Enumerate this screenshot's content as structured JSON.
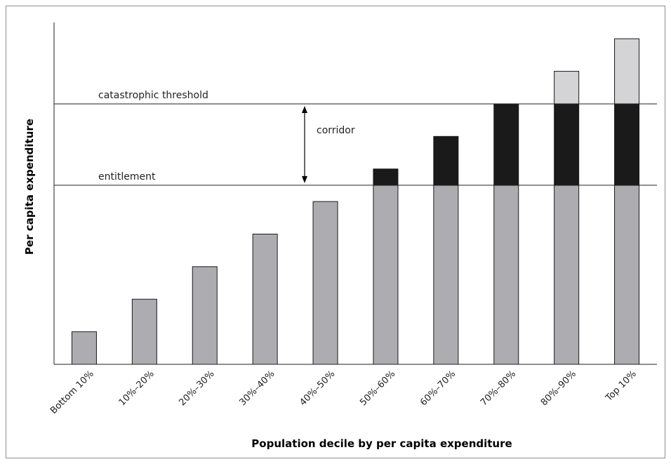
{
  "chart_data": {
    "type": "bar",
    "stacked": true,
    "title": "",
    "xlabel": "Population decile by per capita expenditure",
    "ylabel": "Per capita expenditure",
    "categories": [
      "Bottom 10%",
      "10%–20%",
      "20%–30%",
      "30%–40%",
      "40%–50%",
      "50%–60%",
      "60%–70%",
      "70%–80%",
      "80%–90%",
      "Top 10%"
    ],
    "series": [
      {
        "color": "#adadb1",
        "values": [
          1,
          2,
          3,
          4,
          5,
          5.5,
          5.5,
          5.5,
          5.5,
          5.5
        ]
      },
      {
        "color": "#1a1a1a",
        "values": [
          0,
          0,
          0,
          0,
          0,
          0.5,
          1.5,
          2.5,
          2.5,
          2.5
        ]
      },
      {
        "color": "#d4d4d6",
        "values": [
          0,
          0,
          0,
          0,
          0,
          0,
          0,
          0,
          1,
          2
        ]
      }
    ],
    "ylim": [
      0,
      10.5
    ],
    "reference_lines": [
      {
        "label": "catastrophic threshold",
        "value": 8
      },
      {
        "label": "entitlement",
        "value": 5.5
      }
    ],
    "annotation": {
      "label": "corridor",
      "from": 5.5,
      "to": 8
    }
  }
}
